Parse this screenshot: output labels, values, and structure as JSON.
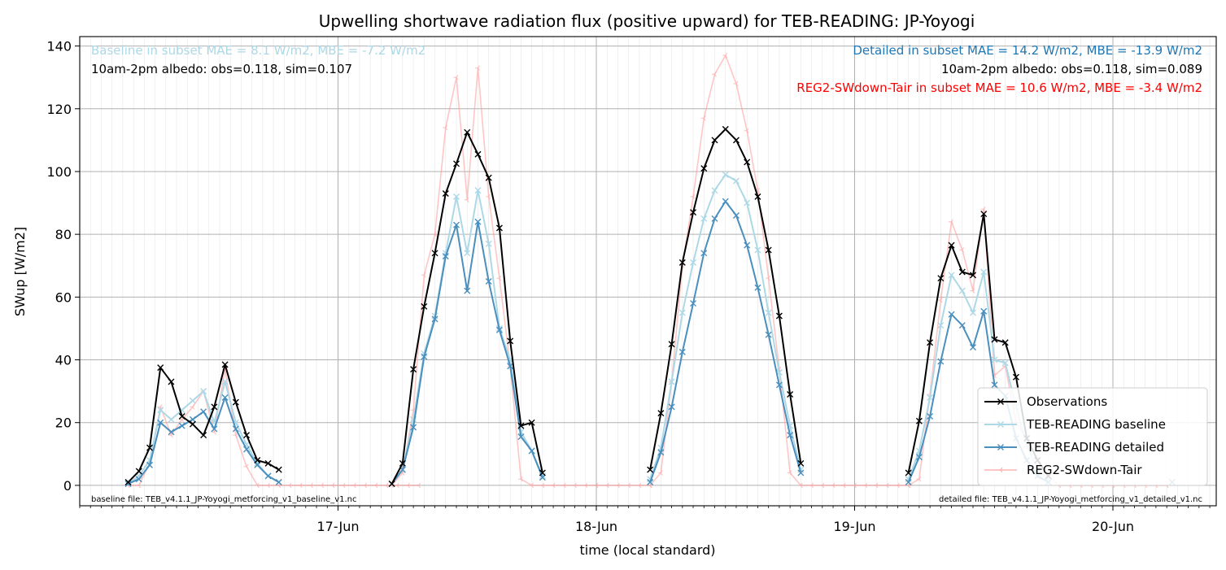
{
  "chart_data": {
    "type": "line",
    "title": "Upwelling shortwave radiation flux (positive upward) for TEB-READING: JP-Yoyogi",
    "xlabel": "time (local standard)",
    "ylabel": "SWup [W/m2]",
    "ylim": [
      -6.5,
      143
    ],
    "yticks": [
      0,
      20,
      40,
      60,
      80,
      100,
      120,
      140
    ],
    "xlim": [
      16.0,
      20.4
    ],
    "xticks": [
      {
        "x": 17,
        "label": "17-Jun"
      },
      {
        "x": 18,
        "label": "18-Jun"
      },
      {
        "x": 19,
        "label": "19-Jun"
      },
      {
        "x": 20,
        "label": "20-Jun"
      }
    ],
    "grid": true,
    "legend": "bottom-right",
    "annotations": {
      "baseline_stats": "Baseline in subset MAE = 8.1 W/m2, MBE = -7.2 W/m2",
      "baseline_albedo": "10am-2pm albedo: obs=0.118, sim=0.107",
      "detailed_stats": "Detailed in subset MAE = 14.2 W/m2, MBE = -13.9 W/m2",
      "detailed_albedo": "10am-2pm albedo: obs=0.118, sim=0.089",
      "reg2_stats": "REG2-SWdown-Tair in subset MAE = 10.6 W/m2, MBE = -3.4 W/m2",
      "baseline_file": "baseline file: TEB_v4.1.1_JP-Yoyogi_metforcing_v1_baseline_v1.nc",
      "detailed_file": "detailed file: TEB_v4.1.1_JP-Yoyogi_metforcing_v1_detailed_v1.nc"
    },
    "series": [
      {
        "name": "Observations",
        "color": "#000000",
        "marker": "x",
        "segments": [
          {
            "x0": 16.1875,
            "dx": 0.04167,
            "values": [
              1,
              4.5,
              12,
              37.5,
              33,
              22,
              19.5,
              16,
              25,
              38.5,
              26.5,
              16,
              8,
              7,
              5
            ]
          },
          {
            "x0": 17.2083,
            "dx": 0.04167,
            "values": [
              0.5,
              7,
              37,
              57,
              74,
              93,
              102.5,
              112.5,
              105.5,
              98,
              82,
              46,
              19,
              20,
              4
            ]
          },
          {
            "x0": 18.2083,
            "dx": 0.04167,
            "values": [
              5,
              23,
              45,
              71,
              87,
              101,
              110,
              113.5,
              110,
              103,
              92,
              75,
              54,
              29,
              7
            ]
          },
          {
            "x0": 19.2083,
            "dx": 0.04167,
            "values": [
              4,
              20.5,
              45.5,
              66,
              76.5,
              68,
              67,
              86.5,
              46.5,
              45.5,
              34.5,
              15,
              8,
              3
            ]
          }
        ]
      },
      {
        "name": "TEB-READING baseline",
        "color": "#add8e6",
        "marker": "x",
        "segments": [
          {
            "x0": 16.1875,
            "dx": 0.04167,
            "values": [
              0.5,
              3,
              8,
              24,
              21,
              24,
              27,
              30,
              20,
              33,
              20,
              13,
              7,
              3,
              1
            ]
          },
          {
            "x0": 17.2083,
            "dx": 0.04167,
            "values": [
              0.5,
              5,
              21,
              42,
              54,
              74,
              92,
              74,
              94,
              77,
              50,
              40,
              17,
              11,
              3
            ]
          },
          {
            "x0": 18.2083,
            "dx": 0.04167,
            "values": [
              2,
              12,
              33,
              55,
              71,
              85,
              94,
              99,
              97,
              90,
              75,
              55,
              36,
              19,
              5
            ]
          },
          {
            "x0": 19.2083,
            "dx": 0.04167,
            "values": [
              2,
              11,
              28,
              51,
              67,
              62,
              55,
              68,
              40,
              39,
              25,
              13,
              5,
              2
            ]
          }
        ]
      },
      {
        "name": "TEB-READING detailed",
        "color": "#4a8fbd",
        "marker": "x",
        "segments": [
          {
            "x0": 16.1875,
            "dx": 0.04167,
            "values": [
              0.5,
              2,
              6.5,
              20,
              17,
              19,
              21,
              23.5,
              18,
              28,
              18,
              11.5,
              6.5,
              3,
              1
            ]
          },
          {
            "x0": 17.2083,
            "dx": 0.04167,
            "values": [
              0.5,
              5,
              18.5,
              41,
              53,
              73,
              83,
              62,
              84,
              65,
              49.5,
              38,
              15.5,
              11,
              2.5
            ]
          },
          {
            "x0": 18.2083,
            "dx": 0.04167,
            "values": [
              1,
              10.5,
              25,
              42.5,
              58,
              74,
              85,
              90.5,
              86,
              76.5,
              63,
              48,
              32,
              16,
              4
            ]
          },
          {
            "x0": 19.2083,
            "dx": 0.04167,
            "values": [
              1,
              9,
              22,
              39.5,
              54.5,
              51,
              44,
              55.5,
              32,
              28.5,
              15,
              8,
              3,
              1
            ]
          },
          {
            "x0": 20.2292,
            "dx": 0.04167,
            "values": [
              1
            ]
          }
        ]
      },
      {
        "name": "REG2-SWdown-Tair",
        "color": "#ff9999",
        "marker": "tri",
        "segments": [
          {
            "x0": 16.1875,
            "dx": 0.04167,
            "values": [
              0,
              0,
              7,
              25,
              16,
              21,
              25,
              30,
              17,
              37,
              16,
              6,
              0,
              0,
              0,
              0,
              0,
              0,
              0,
              0,
              0,
              0,
              0,
              0,
              0,
              0,
              0,
              0
            ]
          },
          {
            "x0": 17.2083,
            "dx": 0.04167,
            "values": [
              0,
              4,
              24,
              67,
              80,
              114,
              130,
              91,
              133,
              92,
              66,
              38,
              2,
              0,
              0,
              0,
              0,
              0,
              0,
              0,
              0,
              0,
              0,
              0,
              0
            ]
          },
          {
            "x0": 18.2083,
            "dx": 0.04167,
            "values": [
              0,
              4,
              33,
              70,
              92,
              117,
              131,
              137,
              128,
              113,
              94,
              66,
              37,
              4,
              0,
              0,
              0,
              0,
              0,
              0,
              0,
              0,
              0,
              0,
              0
            ]
          },
          {
            "x0": 19.2083,
            "dx": 0.04167,
            "values": [
              0,
              2,
              29,
              59,
              84,
              75,
              62,
              88,
              35,
              38,
              20,
              15,
              8,
              3,
              0,
              0,
              0,
              0,
              0,
              0,
              0,
              0,
              0,
              0,
              0
            ]
          }
        ]
      }
    ]
  }
}
